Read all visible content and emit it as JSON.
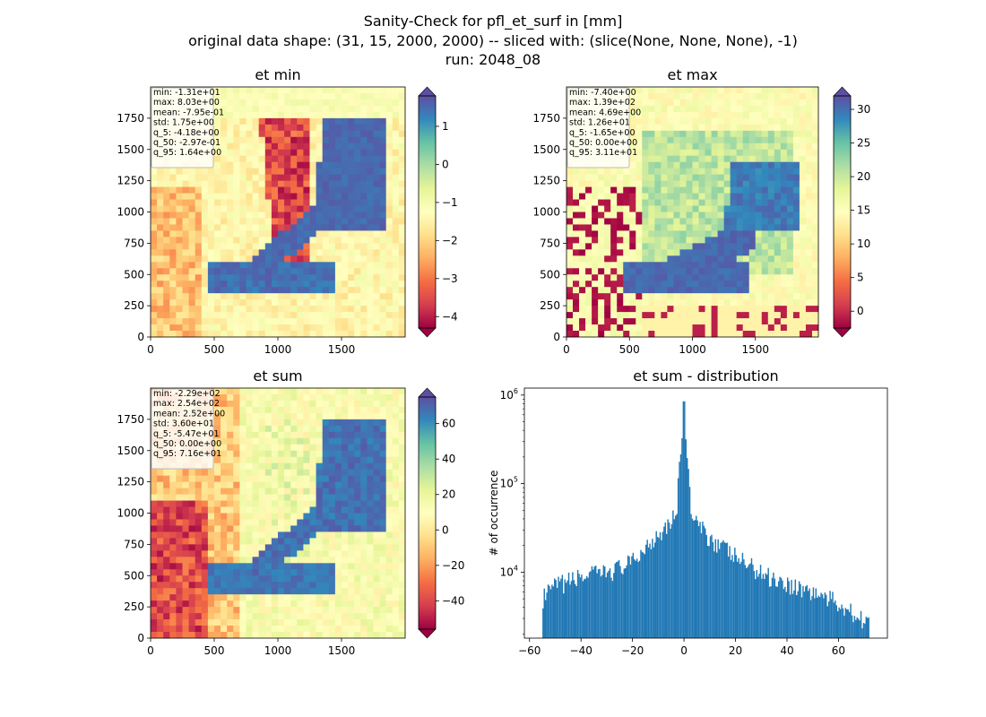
{
  "figure": {
    "title_lines": [
      "Sanity-Check for pfl_et_surf in [mm]",
      "original data shape: (31, 15, 2000, 2000) -- sliced with: (slice(None, None, None), -1)",
      "run: 2048_08"
    ]
  },
  "chart_data": [
    {
      "type": "heatmap",
      "title": "et min",
      "xlim": [
        0,
        2000
      ],
      "ylim": [
        0,
        2000
      ],
      "xticks": [
        0,
        500,
        1000,
        1500
      ],
      "yticks": [
        0,
        250,
        500,
        750,
        1000,
        1250,
        1500,
        1750
      ],
      "colormap": "Spectral",
      "colorbar": {
        "min": -4.3,
        "max": 1.8,
        "ticks": [
          1,
          0,
          -1,
          -2,
          -3,
          -4
        ],
        "tick_labels": [
          "1",
          "0",
          "−1",
          "−2",
          "−3",
          "−4"
        ]
      },
      "stats": [
        "min: -1.31e+01",
        "max: 8.03e+00",
        "mean: -7.95e-01",
        "std: 1.75e+00",
        "q_5: -4.18e+00",
        "q_50: -2.97e-01",
        "q_95: 1.64e+00"
      ]
    },
    {
      "type": "heatmap",
      "title": "et max",
      "xlim": [
        0,
        2000
      ],
      "ylim": [
        0,
        2000
      ],
      "xticks": [
        0,
        500,
        1000,
        1500
      ],
      "yticks": [
        0,
        250,
        500,
        750,
        1000,
        1250,
        1500,
        1750
      ],
      "colormap": "Spectral",
      "colorbar": {
        "min": -2.5,
        "max": 32,
        "ticks": [
          30,
          25,
          20,
          15,
          10,
          5,
          0
        ],
        "tick_labels": [
          "30",
          "25",
          "20",
          "15",
          "10",
          "5",
          "0"
        ]
      },
      "stats": [
        "min: -7.40e+00",
        "max: 1.39e+02",
        "mean: 4.69e+00",
        "std: 1.26e+01",
        "q_5: -1.65e+00",
        "q_50: 0.00e+00",
        "q_95: 3.11e+01"
      ]
    },
    {
      "type": "heatmap",
      "title": "et sum",
      "xlim": [
        0,
        2000
      ],
      "ylim": [
        0,
        2000
      ],
      "xticks": [
        0,
        500,
        1000,
        1500
      ],
      "yticks": [
        0,
        250,
        500,
        750,
        1000,
        1250,
        1500,
        1750
      ],
      "colormap": "Spectral",
      "colorbar": {
        "min": -56,
        "max": 75,
        "ticks": [
          60,
          40,
          20,
          0,
          -20,
          -40
        ],
        "tick_labels": [
          "60",
          "40",
          "20",
          "0",
          "−20",
          "−40"
        ]
      },
      "stats": [
        "min: -2.29e+02",
        "max: 2.54e+02",
        "mean: 2.52e+00",
        "std: 3.60e+01",
        "q_5: -5.47e+01",
        "q_50: 0.00e+00",
        "q_95: 7.16e+01"
      ]
    },
    {
      "type": "bar",
      "title": "et sum - distribution",
      "ylabel": "# of occurrence",
      "xlabel": "",
      "yscale": "log",
      "xlim": [
        -62,
        79
      ],
      "ylim": [
        1800,
        1200000
      ],
      "xticks": [
        -60,
        -40,
        -20,
        0,
        20,
        40,
        60
      ],
      "xtick_labels": [
        "−60",
        "−40",
        "−20",
        "0",
        "20",
        "40",
        "60"
      ],
      "yticks": [
        10000,
        100000,
        1000000
      ],
      "ytick_labels": [
        "10^4",
        "10^5",
        "10^6"
      ],
      "color": "#1f77b4",
      "bin_range": [
        -55,
        72
      ],
      "peak": {
        "x": 0,
        "y": 850000
      },
      "approx_counts": [
        {
          "x": -55,
          "y": 5000
        },
        {
          "x": -50,
          "y": 7000
        },
        {
          "x": -40,
          "y": 9000
        },
        {
          "x": -30,
          "y": 10000
        },
        {
          "x": -20,
          "y": 13000
        },
        {
          "x": -10,
          "y": 28000
        },
        {
          "x": -3,
          "y": 45000
        },
        {
          "x": 0,
          "y": 850000
        },
        {
          "x": 3,
          "y": 40000
        },
        {
          "x": 10,
          "y": 25000
        },
        {
          "x": 20,
          "y": 15000
        },
        {
          "x": 30,
          "y": 10000
        },
        {
          "x": 40,
          "y": 7500
        },
        {
          "x": 50,
          "y": 6000
        },
        {
          "x": 60,
          "y": 4500
        },
        {
          "x": 70,
          "y": 3000
        }
      ]
    }
  ]
}
